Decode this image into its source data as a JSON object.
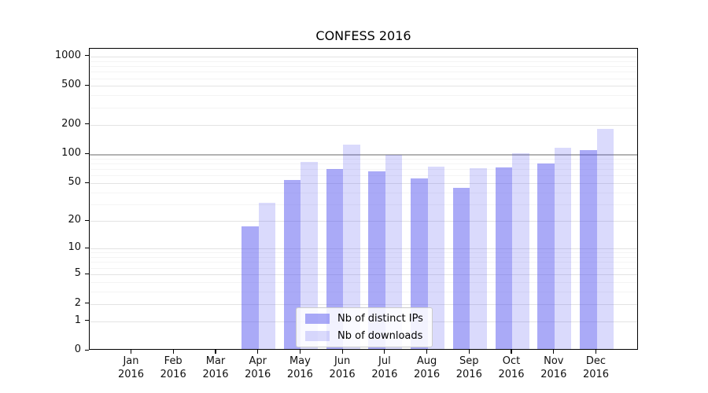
{
  "chart_data": {
    "type": "bar",
    "title": "CONFESS 2016",
    "categories": [
      "Jan 2016",
      "Feb 2016",
      "Mar 2016",
      "Apr 2016",
      "May 2016",
      "Jun 2016",
      "Jul 2016",
      "Aug 2016",
      "Sep 2016",
      "Oct 2016",
      "Nov 2016",
      "Dec 2016"
    ],
    "month_labels": [
      "Jan",
      "Feb",
      "Mar",
      "Apr",
      "May",
      "Jun",
      "Jul",
      "Aug",
      "Sep",
      "Oct",
      "Nov",
      "Dec"
    ],
    "year_label": "2016",
    "series": [
      {
        "name": "Nb of distinct IPs",
        "apparent_color": "#aaaaf8",
        "fill": "rgba(85,85,240,0.5)",
        "values": [
          0,
          0,
          0,
          17,
          52,
          68,
          64,
          54,
          43,
          70,
          77,
          106
        ]
      },
      {
        "name": "Nb of downloads",
        "apparent_color": "#dcdcfa",
        "fill": "rgba(85,85,240,0.22)",
        "values": [
          0,
          0,
          0,
          30,
          80,
          120,
          95,
          71,
          69,
          98,
          112,
          176
        ]
      }
    ],
    "xlabel": "",
    "ylabel": "",
    "yscale": "log(1+y) (symlog-like, 0 shown at baseline)",
    "yticks": [
      0,
      1,
      2,
      5,
      10,
      20,
      50,
      100,
      200,
      500,
      1000
    ],
    "grid_minor": [
      3,
      4,
      6,
      7,
      8,
      9,
      30,
      40,
      60,
      70,
      80,
      90,
      300,
      400,
      600,
      700,
      800,
      900
    ],
    "emphasized_gridline": 100,
    "ylim": [
      0,
      1200
    ],
    "grid": "on",
    "legend_position": "lower center",
    "colors": {
      "grid_minor": "#f4f4f4",
      "grid_major": "#e3e3e3",
      "grid_emphasis": "#b3b3b3",
      "axis": "#000000",
      "background": "#ffffff"
    }
  }
}
